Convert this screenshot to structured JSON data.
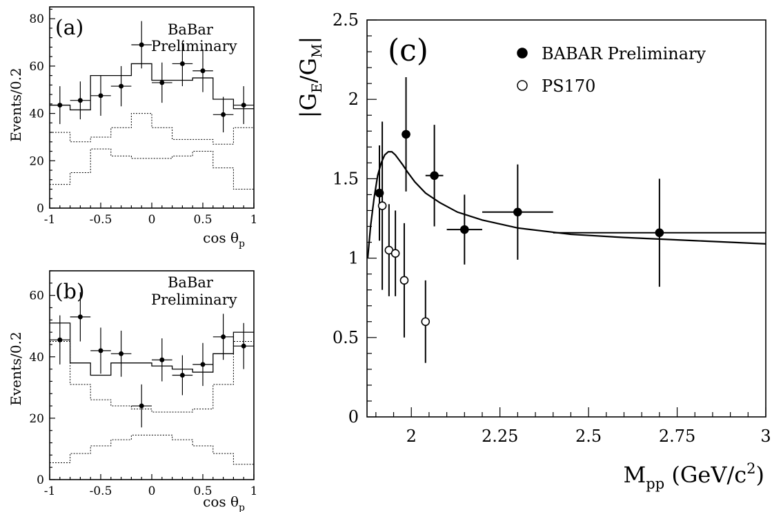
{
  "chart_data": [
    {
      "panel_label": "(a)",
      "type": "scatter",
      "annotation": [
        "BaBar",
        "Preliminary"
      ],
      "ylabel": "Events/0.2",
      "xlabel": "cos θ",
      "xlabel_sub": "p",
      "xlim": [
        -1,
        1
      ],
      "ylim": [
        0,
        85
      ],
      "xticks": [
        -1,
        -0.5,
        0,
        0.5,
        1
      ],
      "xtick_labels": [
        "-1",
        "-0.5",
        "0",
        "0.5",
        "1"
      ],
      "yticks": [
        0,
        20,
        40,
        60,
        80
      ],
      "ytick_labels": [
        "0",
        "20",
        "40",
        "60",
        "80"
      ],
      "data": {
        "x": [
          -0.9,
          -0.7,
          -0.5,
          -0.3,
          -0.1,
          0.1,
          0.3,
          0.5,
          0.7,
          0.9
        ],
        "y": [
          43.5,
          45.5,
          47.5,
          51.5,
          69,
          53,
          61,
          58,
          39.5,
          43.5
        ],
        "yerr": [
          8,
          8,
          8.5,
          8.5,
          10,
          8.5,
          9.5,
          9,
          7.5,
          8
        ]
      },
      "fit_histogram": [
        43.5,
        41.5,
        56,
        56,
        61,
        54,
        54,
        55,
        46,
        42
      ],
      "background_upper": [
        32,
        28,
        30,
        34,
        40,
        34,
        29,
        29,
        27,
        34
      ],
      "background_lower": [
        10,
        15,
        25,
        22,
        21,
        21,
        22,
        24,
        17,
        8
      ]
    },
    {
      "panel_label": "(b)",
      "type": "scatter",
      "annotation": [
        "BaBar",
        "Preliminary"
      ],
      "ylabel": "Events/0.2",
      "xlabel": "cos θ",
      "xlabel_sub": "p",
      "xlim": [
        -1,
        1
      ],
      "ylim": [
        0,
        68
      ],
      "xticks": [
        -1,
        -0.5,
        0,
        0.5,
        1
      ],
      "xtick_labels": [
        "-1",
        "-0.5",
        "0",
        "0.5",
        "1"
      ],
      "yticks": [
        0,
        20,
        40,
        60
      ],
      "ytick_labels": [
        "0",
        "20",
        "40",
        "60"
      ],
      "data": {
        "x": [
          -0.9,
          -0.7,
          -0.5,
          -0.3,
          -0.1,
          0.1,
          0.3,
          0.5,
          0.7,
          0.9
        ],
        "y": [
          45.5,
          53,
          42,
          41,
          24,
          39,
          34,
          37.5,
          46.5,
          43.5
        ],
        "yerr": [
          8,
          8,
          7.5,
          7.5,
          7,
          7,
          6.5,
          7,
          7.5,
          7.5
        ]
      },
      "fit_histogram": [
        51,
        38,
        34,
        38,
        38,
        37,
        36,
        35,
        41,
        48
      ],
      "background_upper": [
        45,
        31,
        26,
        24,
        23,
        22,
        22,
        23,
        31,
        45
      ],
      "background_lower": [
        5.5,
        8.5,
        11,
        13,
        14.5,
        14.5,
        13,
        11,
        8.5,
        5
      ]
    },
    {
      "panel_label": "(c)",
      "type": "scatter",
      "ylabel": "|G",
      "ylabel_sub1": "E",
      "ylabel_mid": "/G",
      "ylabel_sub2": "M",
      "ylabel_end": "|",
      "xlabel": "M",
      "xlabel_sub": "pp",
      "xlabel_unit": " (GeV/c",
      "xlabel_sup": "2",
      "xlabel_end": ")",
      "xlim": [
        1.875,
        3.0
      ],
      "ylim": [
        0,
        2.5
      ],
      "xticks": [
        2,
        2.25,
        2.5,
        2.75,
        3
      ],
      "xtick_labels": [
        "2",
        "2.25",
        "2.5",
        "2.75",
        "3"
      ],
      "yticks": [
        0,
        0.5,
        1,
        1.5,
        2,
        2.5
      ],
      "ytick_labels": [
        "0",
        "0.5",
        "1",
        "1.5",
        "2",
        "2.5"
      ],
      "series": [
        {
          "name": "BABAR Preliminary",
          "marker": "filled",
          "x": [
            1.91,
            1.985,
            2.065,
            2.15,
            2.3,
            2.7
          ],
          "y": [
            1.41,
            1.78,
            1.52,
            1.18,
            1.29,
            1.16
          ],
          "xerr": [
            0.012,
            0.012,
            0.025,
            0.05,
            0.1,
            0.3
          ],
          "yerr": [
            0.3,
            0.36,
            0.32,
            0.22,
            0.3,
            0.34
          ]
        },
        {
          "name": "PS170",
          "marker": "open",
          "x": [
            1.918,
            1.937,
            1.955,
            1.98,
            2.04
          ],
          "y": [
            1.33,
            1.05,
            1.03,
            0.86,
            0.6
          ],
          "yerr": [
            0.53,
            0.29,
            0.27,
            0.36,
            0.26
          ]
        }
      ],
      "fit_curve": {
        "x": [
          1.877,
          1.885,
          1.895,
          1.905,
          1.915,
          1.925,
          1.935,
          1.945,
          1.955,
          1.965,
          1.975,
          1.99,
          2.01,
          2.04,
          2.08,
          2.13,
          2.2,
          2.3,
          2.45,
          2.6,
          2.8,
          3.0
        ],
        "y": [
          1.0,
          1.2,
          1.38,
          1.52,
          1.6,
          1.65,
          1.67,
          1.67,
          1.65,
          1.62,
          1.59,
          1.54,
          1.48,
          1.41,
          1.35,
          1.29,
          1.24,
          1.19,
          1.15,
          1.13,
          1.11,
          1.09
        ]
      }
    }
  ]
}
